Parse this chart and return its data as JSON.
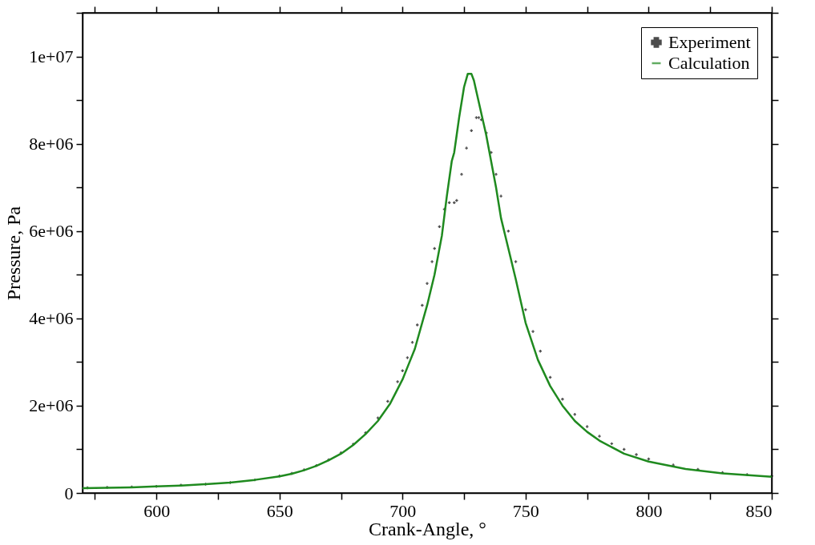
{
  "chart_data": {
    "type": "line",
    "xlabel": "Crank-Angle, °",
    "ylabel": "Pressure, Pa",
    "xlim": [
      570,
      850
    ],
    "ylim": [
      0,
      11000000
    ],
    "xticks": [
      {
        "value": 575,
        "label": null
      },
      600,
      {
        "value": 625,
        "label": null
      },
      650,
      {
        "value": 675,
        "label": null
      },
      700,
      {
        "value": 725,
        "label": null
      },
      750,
      {
        "value": 775,
        "label": null
      },
      800,
      {
        "value": 825,
        "label": null
      },
      850
    ],
    "yticks": [
      0,
      {
        "value": 1000000,
        "label": null
      },
      {
        "value": 2000000,
        "label": "2e+06"
      },
      {
        "value": 3000000,
        "label": null
      },
      {
        "value": 4000000,
        "label": "4e+06"
      },
      {
        "value": 5000000,
        "label": null
      },
      {
        "value": 6000000,
        "label": "6e+06"
      },
      {
        "value": 7000000,
        "label": null
      },
      {
        "value": 8000000,
        "label": "8e+06"
      },
      {
        "value": 9000000,
        "label": null
      },
      {
        "value": 10000000,
        "label": "1e+07"
      },
      {
        "value": 11000000,
        "label": null
      }
    ],
    "grid": false,
    "legend": "top right",
    "series": [
      {
        "name": "Experiment",
        "type": "scatter",
        "marker": "cross",
        "color": "#000000",
        "x": [
          572,
          580,
          590,
          600,
          610,
          620,
          630,
          640,
          650,
          655,
          660,
          665,
          670,
          675,
          680,
          685,
          690,
          694,
          698,
          700,
          702,
          704,
          706,
          708,
          710,
          712,
          713,
          715,
          717,
          719,
          721,
          722,
          724,
          726,
          728,
          730,
          731,
          732,
          734,
          736,
          738,
          740,
          743,
          746,
          750,
          753,
          756,
          760,
          765,
          770,
          775,
          780,
          785,
          790,
          795,
          800,
          810,
          820,
          830,
          840,
          850
        ],
        "values": [
          120000,
          130000,
          140000,
          150000,
          180000,
          200000,
          240000,
          300000,
          390000,
          450000,
          530000,
          630000,
          760000,
          920000,
          1120000,
          1380000,
          1720000,
          2100000,
          2550000,
          2800000,
          3100000,
          3450000,
          3850000,
          4300000,
          4800000,
          5300000,
          5600000,
          6100000,
          6500000,
          6650000,
          6650000,
          6700000,
          7300000,
          7900000,
          8300000,
          8600000,
          8600000,
          8550000,
          8250000,
          7800000,
          7300000,
          6800000,
          6000000,
          5300000,
          4200000,
          3700000,
          3250000,
          2650000,
          2150000,
          1800000,
          1520000,
          1300000,
          1130000,
          1000000,
          880000,
          780000,
          640000,
          540000,
          470000,
          420000,
          390000
        ]
      },
      {
        "name": "Calculation",
        "marker": "none",
        "line_style": "solid",
        "color": "#1f8a1f",
        "x": [
          570,
          580,
          590,
          600,
          610,
          620,
          630,
          640,
          650,
          655,
          660,
          665,
          670,
          675,
          680,
          685,
          690,
          695,
          700,
          705,
          710,
          713,
          716,
          718,
          720,
          721,
          722,
          723,
          725,
          726.5,
          728,
          729,
          730,
          732,
          734,
          736,
          738,
          740,
          743,
          746,
          750,
          755,
          760,
          765,
          770,
          775,
          780,
          790,
          800,
          815,
          830,
          850
        ],
        "values": [
          110000,
          120000,
          130000,
          150000,
          170000,
          200000,
          240000,
          300000,
          380000,
          440000,
          520000,
          620000,
          750000,
          900000,
          1100000,
          1350000,
          1650000,
          2050000,
          2600000,
          3300000,
          4300000,
          5000000,
          5900000,
          6800000,
          7600000,
          7800000,
          8200000,
          8600000,
          9300000,
          9600000,
          9600000,
          9450000,
          9200000,
          8700000,
          8200000,
          7600000,
          7000000,
          6300000,
          5600000,
          4900000,
          3900000,
          3050000,
          2450000,
          2000000,
          1650000,
          1400000,
          1200000,
          900000,
          720000,
          550000,
          450000,
          370000
        ]
      }
    ]
  }
}
